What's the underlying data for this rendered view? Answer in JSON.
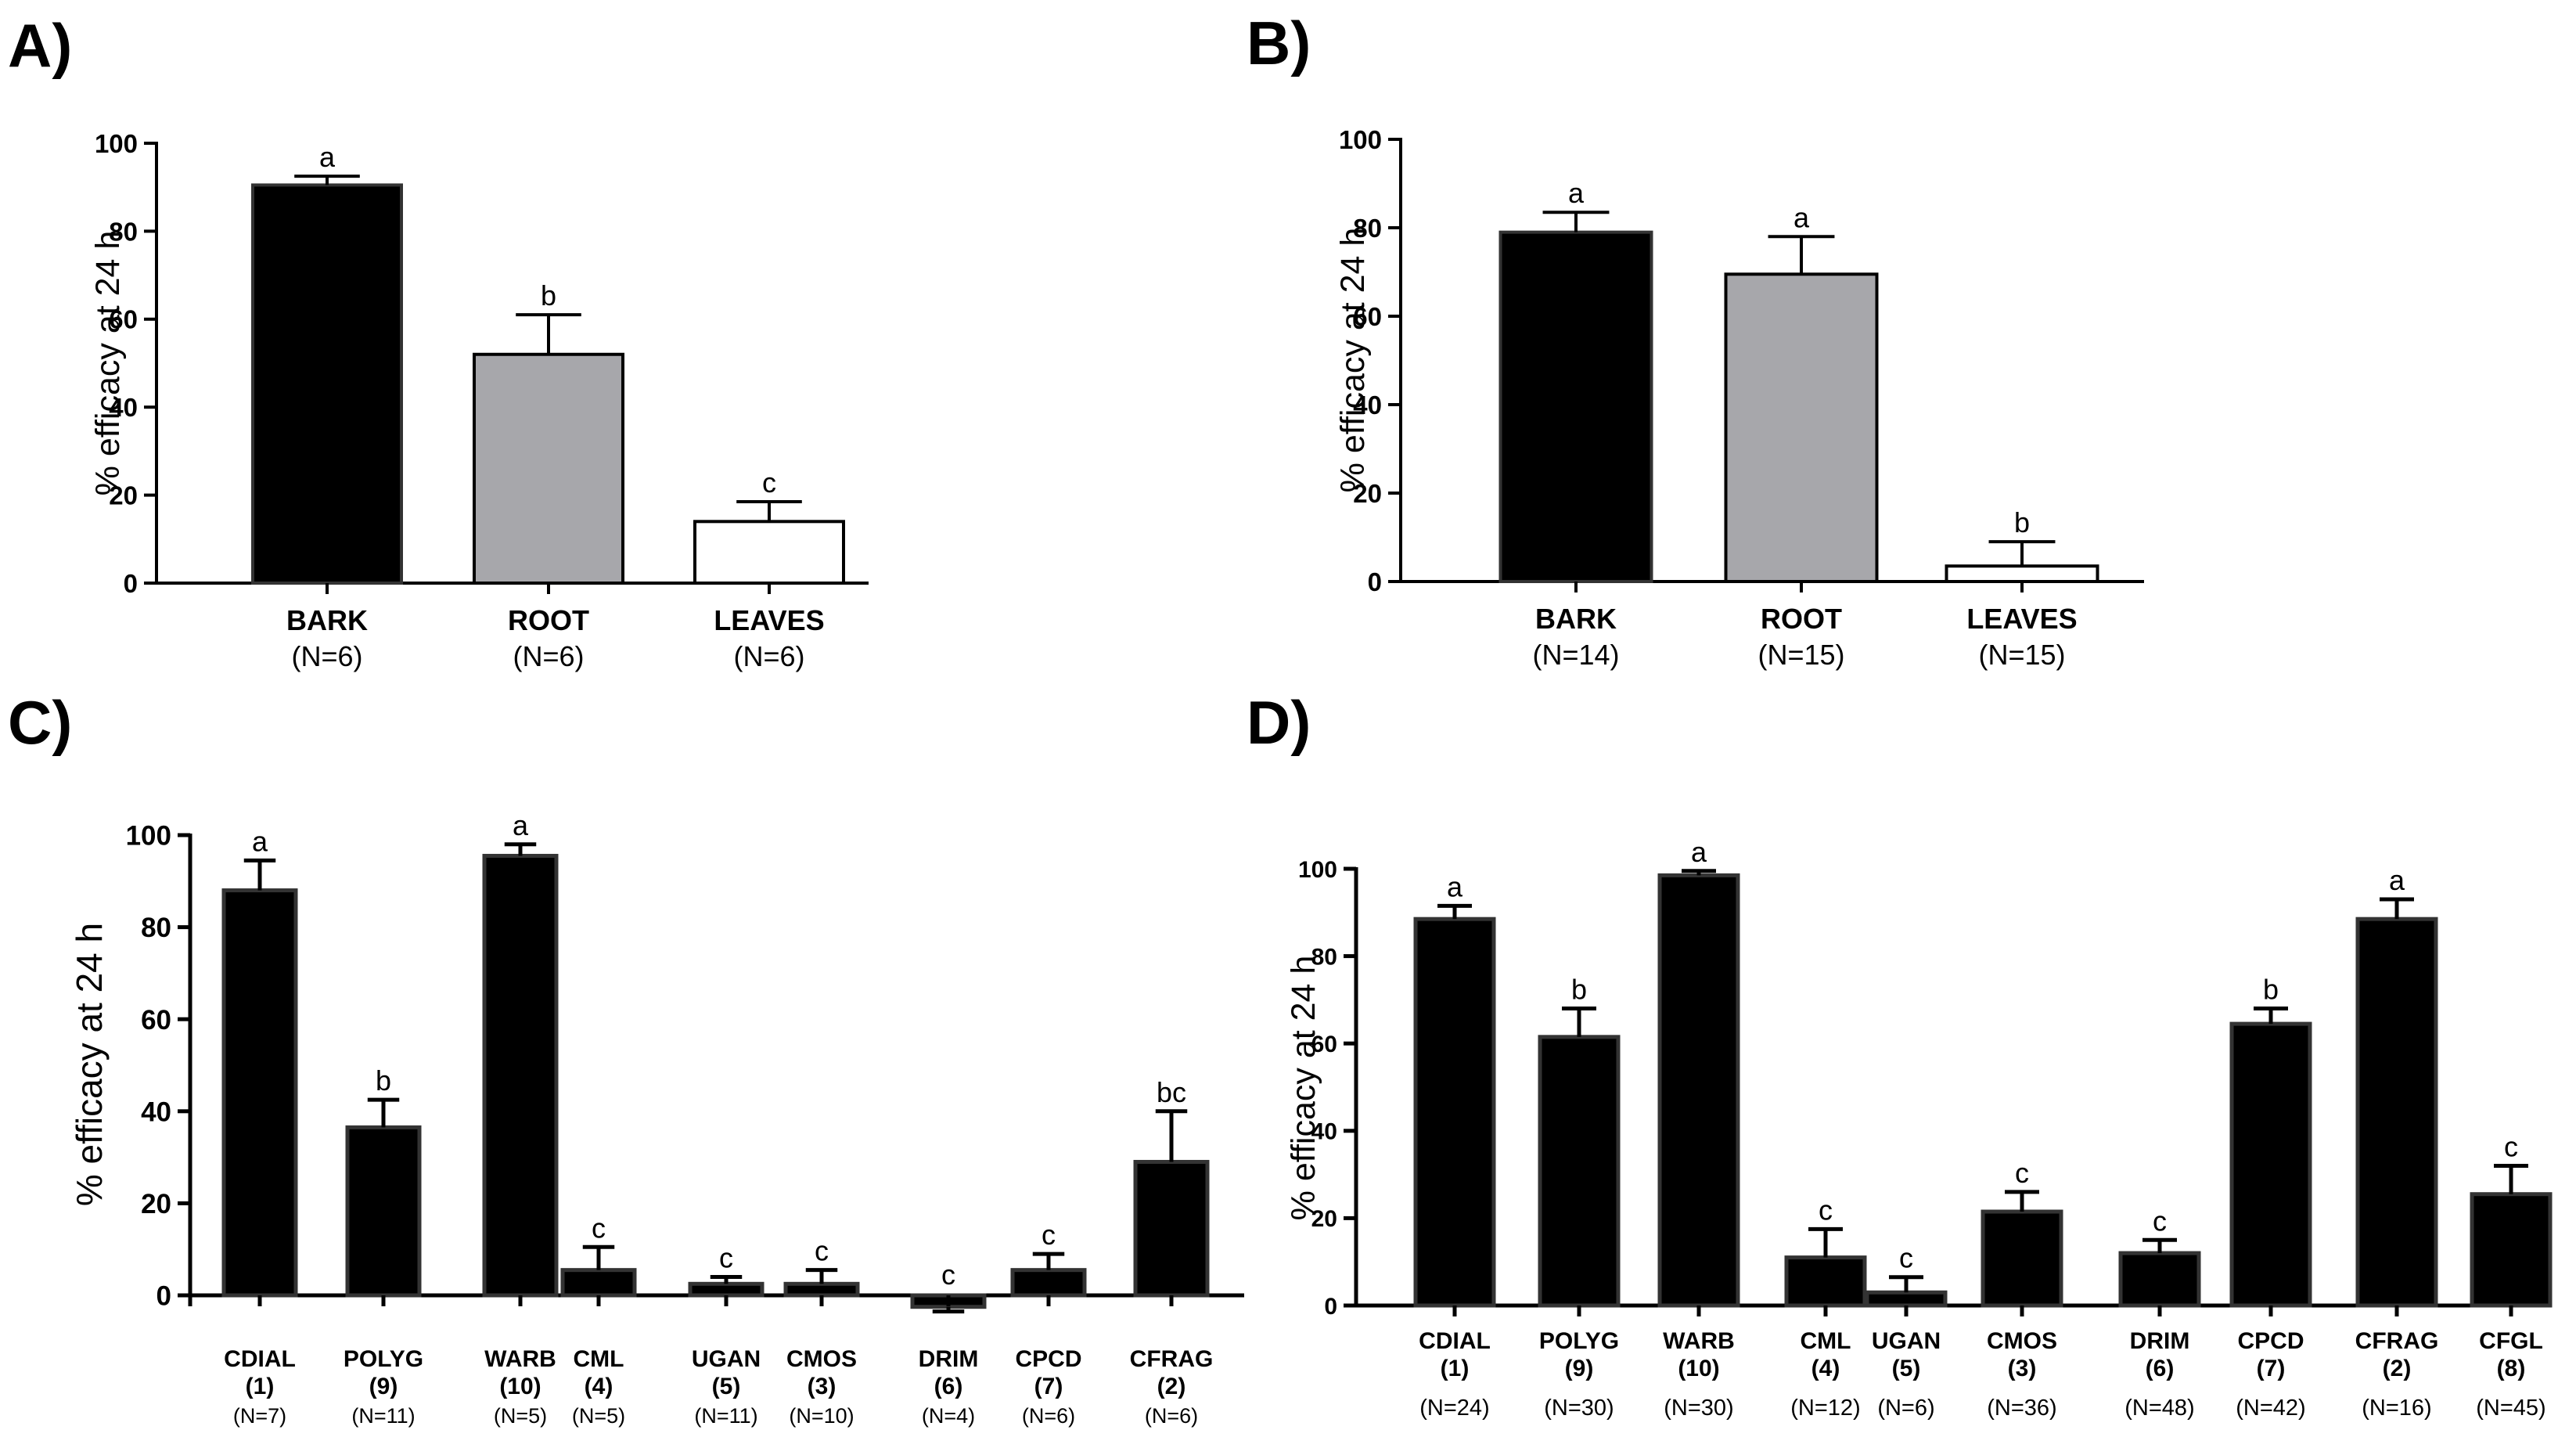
{
  "chart_data": [
    {
      "panel": "A)",
      "type": "bar",
      "ylabel": "% efficacy at 24 h",
      "ylim": [
        0,
        100
      ],
      "yticks": [
        "0",
        "20",
        "40",
        "60",
        "80",
        "100"
      ],
      "categories": [
        "BARK",
        "ROOT",
        "LEAVES"
      ],
      "sample_sizes": [
        "(N=6)",
        "(N=6)",
        "(N=6)"
      ],
      "values": [
        90.5,
        52,
        14
      ],
      "errors": [
        2,
        9,
        4.5
      ],
      "letters": [
        "a",
        "b",
        "c"
      ],
      "bar_colors": [
        "#000000",
        "#a7a7ab",
        "#ffffff"
      ]
    },
    {
      "panel": "B)",
      "type": "bar",
      "ylabel": "% efficacy at 24 h",
      "ylim": [
        0,
        100
      ],
      "yticks": [
        "0",
        "20",
        "40",
        "60",
        "80",
        "100"
      ],
      "categories": [
        "BARK",
        "ROOT",
        "LEAVES"
      ],
      "sample_sizes": [
        "(N=14)",
        "(N=15)",
        "(N=15)"
      ],
      "values": [
        79,
        69.5,
        3.5
      ],
      "errors": [
        4.5,
        8.5,
        5.5
      ],
      "letters": [
        "a",
        "a",
        "b"
      ],
      "bar_colors": [
        "#000000",
        "#a7a7ab",
        "#ffffff"
      ]
    },
    {
      "panel": "C)",
      "type": "bar",
      "ylabel": "% efficacy at 24 h",
      "ylim": [
        -5,
        100
      ],
      "yticks": [
        "0",
        "20",
        "40",
        "60",
        "80",
        "100"
      ],
      "categories": [
        "CDIAL",
        "POLYG",
        "WARB",
        "CML",
        "UGAN",
        "CMOS",
        "DRIM",
        "CPCD",
        "CFRAG"
      ],
      "groups": [
        "(1)",
        "(9)",
        "(10)",
        "(4)",
        "(5)",
        "(3)",
        "(6)",
        "(7)",
        "(2)"
      ],
      "sample_sizes": [
        "(N=7)",
        "(N=11)",
        "(N=5)",
        "(N=5)",
        "(N=11)",
        "(N=10)",
        "(N=4)",
        "(N=6)",
        "(N=6)"
      ],
      "values": [
        88,
        36.5,
        95.5,
        5.5,
        2.5,
        2.5,
        -2.5,
        5.5,
        29
      ],
      "errors": [
        6.5,
        6,
        2.5,
        5,
        1.5,
        3,
        1,
        3.5,
        11
      ],
      "letters": [
        "a",
        "b",
        "a",
        "c",
        "c",
        "c",
        "c",
        "c",
        "bc"
      ],
      "bar_colors": [
        "#000000"
      ]
    },
    {
      "panel": "D)",
      "type": "bar",
      "ylabel": "% efficacy at 24 h",
      "ylim": [
        0,
        100
      ],
      "yticks": [
        "0",
        "20",
        "40",
        "60",
        "80",
        "100"
      ],
      "categories": [
        "CDIAL",
        "POLYG",
        "WARB",
        "CML",
        "UGAN",
        "CMOS",
        "DRIM",
        "CPCD",
        "CFRAG",
        "CFGL"
      ],
      "groups": [
        "(1)",
        "(9)",
        "(10)",
        "(4)",
        "(5)",
        "(3)",
        "(6)",
        "(7)",
        "(2)",
        "(8)"
      ],
      "sample_sizes": [
        "(N=24)",
        "(N=30)",
        "(N=30)",
        "(N=12)",
        "(N=6)",
        "(N=36)",
        "(N=48)",
        "(N=42)",
        "(N=16)",
        "(N=45)"
      ],
      "values": [
        88.5,
        61.5,
        98.5,
        11,
        3,
        21.5,
        12,
        64.5,
        88.5,
        25.5
      ],
      "errors": [
        3,
        6.5,
        1,
        6.5,
        3.5,
        4.5,
        3,
        3.5,
        4.5,
        6.5
      ],
      "letters": [
        "a",
        "b",
        "a",
        "c",
        "c",
        "c",
        "c",
        "b",
        "a",
        "c"
      ],
      "bar_colors": [
        "#000000"
      ]
    }
  ]
}
